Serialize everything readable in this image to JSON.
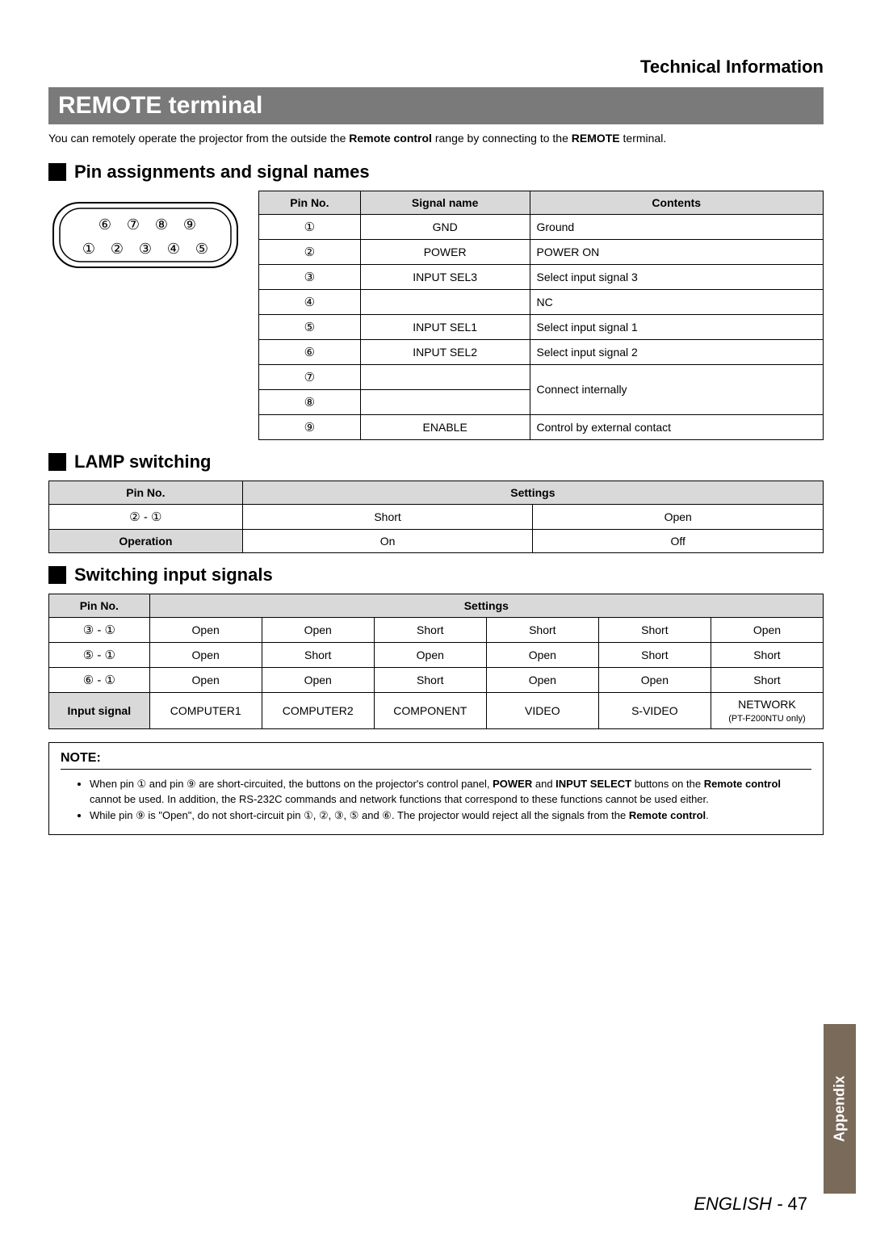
{
  "header": {
    "section_title": "Technical Information"
  },
  "banner": {
    "title": "REMOTE terminal"
  },
  "intro": {
    "text_before": "You can remotely operate the projector from the outside the ",
    "bold1": "Remote control",
    "mid": " range by connecting to the ",
    "bold2": "REMOTE",
    "after": " terminal."
  },
  "pin_section": {
    "heading": "Pin assignments and signal names",
    "connector_pins": [
      "⑥",
      "⑦",
      "⑧",
      "⑨",
      "①",
      "②",
      "③",
      "④",
      "⑤"
    ],
    "table": {
      "headers": [
        "Pin No.",
        "Signal name",
        "Contents"
      ],
      "rows": [
        {
          "pin": "①",
          "signal": "GND",
          "content": "Ground"
        },
        {
          "pin": "②",
          "signal": "POWER",
          "content": "POWER ON"
        },
        {
          "pin": "③",
          "signal": "INPUT SEL3",
          "content": "Select input signal 3"
        },
        {
          "pin": "④",
          "signal": "",
          "content": "NC"
        },
        {
          "pin": "⑤",
          "signal": "INPUT SEL1",
          "content": "Select input signal 1"
        },
        {
          "pin": "⑥",
          "signal": "INPUT SEL2",
          "content": "Select input signal 2"
        },
        {
          "pin": "⑦",
          "signal": "",
          "content": "Connect internally",
          "rowspan_content": 2
        },
        {
          "pin": "⑧",
          "signal": "",
          "content": ""
        },
        {
          "pin": "⑨",
          "signal": "ENABLE",
          "content": "Control by external contact"
        }
      ]
    }
  },
  "lamp_section": {
    "heading": "LAMP switching",
    "table": {
      "headers": [
        "Pin No.",
        "Settings"
      ],
      "rows": [
        {
          "label": "② - ①",
          "c1": "Short",
          "c2": "Open",
          "is_header_row": false
        },
        {
          "label": "Operation",
          "c1": "On",
          "c2": "Off",
          "is_header_row": true
        }
      ]
    }
  },
  "input_section": {
    "heading": "Switching input signals",
    "table": {
      "headers": [
        "Pin No.",
        "Settings"
      ],
      "rows": [
        {
          "label": "③ - ①",
          "cells": [
            "Open",
            "Open",
            "Short",
            "Short",
            "Short",
            "Open"
          ],
          "head": false
        },
        {
          "label": "⑤ - ①",
          "cells": [
            "Open",
            "Short",
            "Open",
            "Open",
            "Short",
            "Short"
          ],
          "head": false
        },
        {
          "label": "⑥ - ①",
          "cells": [
            "Open",
            "Open",
            "Short",
            "Open",
            "Open",
            "Short"
          ],
          "head": false
        },
        {
          "label": "Input signal",
          "cells": [
            "COMPUTER1",
            "COMPUTER2",
            "COMPONENT",
            "VIDEO",
            "S-VIDEO",
            "NETWORK"
          ],
          "subnote": "(PT-F200NTU only)",
          "head": true
        }
      ]
    }
  },
  "note": {
    "title": "NOTE:",
    "items": [
      {
        "parts": [
          {
            "t": "When pin ① and pin ⑨ are short-circuited, the buttons on the projector's control panel, "
          },
          {
            "b": "POWER"
          },
          {
            "t": " and "
          },
          {
            "b": "INPUT SELECT"
          },
          {
            "t": " buttons on the "
          },
          {
            "b": "Remote control"
          },
          {
            "t": " cannot be used. In addition, the RS-232C commands and network functions that correspond to these functions cannot be used either."
          }
        ]
      },
      {
        "parts": [
          {
            "t": "While pin ⑨ is \"Open\", do not short-circuit pin ①, ②, ③, ⑤ and ⑥. The projector would reject all the signals from the "
          },
          {
            "b": "Remote control"
          },
          {
            "t": "."
          }
        ]
      }
    ]
  },
  "side_tab": {
    "label": "Appendix"
  },
  "footer": {
    "lang": "ENGLISH",
    "sep": " - ",
    "page": "47"
  },
  "colors": {
    "banner_bg": "#7a7a7a",
    "header_bg": "#d9d9d9",
    "tab_bg": "#7a6a5a",
    "border": "#000000",
    "text": "#000000",
    "white": "#ffffff"
  }
}
